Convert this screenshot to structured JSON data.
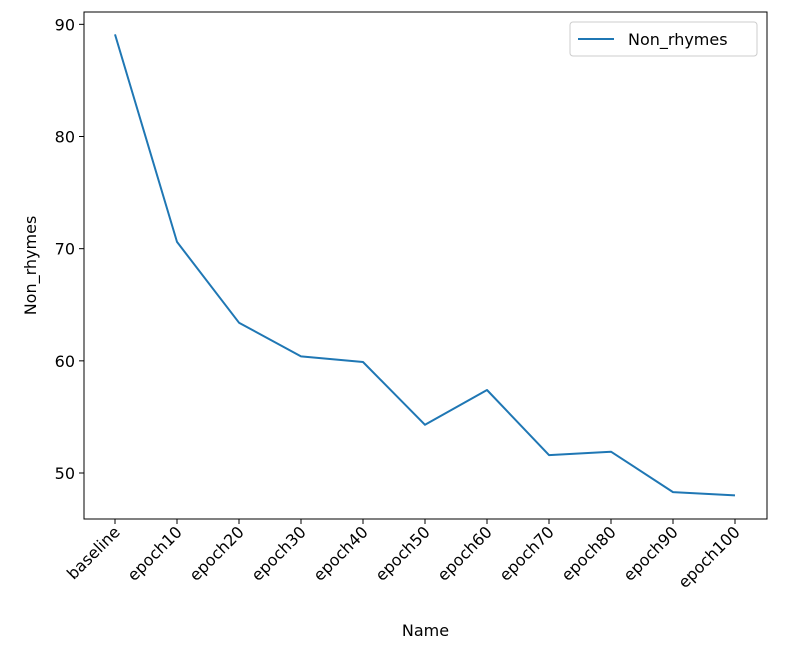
{
  "chart_data": {
    "type": "line",
    "categories": [
      "baseline",
      "epoch10",
      "epoch20",
      "epoch30",
      "epoch40",
      "epoch50",
      "epoch60",
      "epoch70",
      "epoch80",
      "epoch90",
      "epoch100"
    ],
    "series": [
      {
        "name": "Non_rhymes",
        "color": "#1f77b4",
        "values": [
          89.1,
          70.6,
          63.4,
          60.4,
          59.9,
          54.3,
          57.4,
          51.6,
          51.9,
          48.3,
          48.0
        ]
      }
    ],
    "xlabel": "Name",
    "ylabel": "Non_rhymes",
    "ylim": [
      45.9,
      91.1
    ],
    "yticks": [
      50,
      60,
      70,
      80,
      90
    ],
    "grid": false,
    "legend_position": "top-right"
  }
}
